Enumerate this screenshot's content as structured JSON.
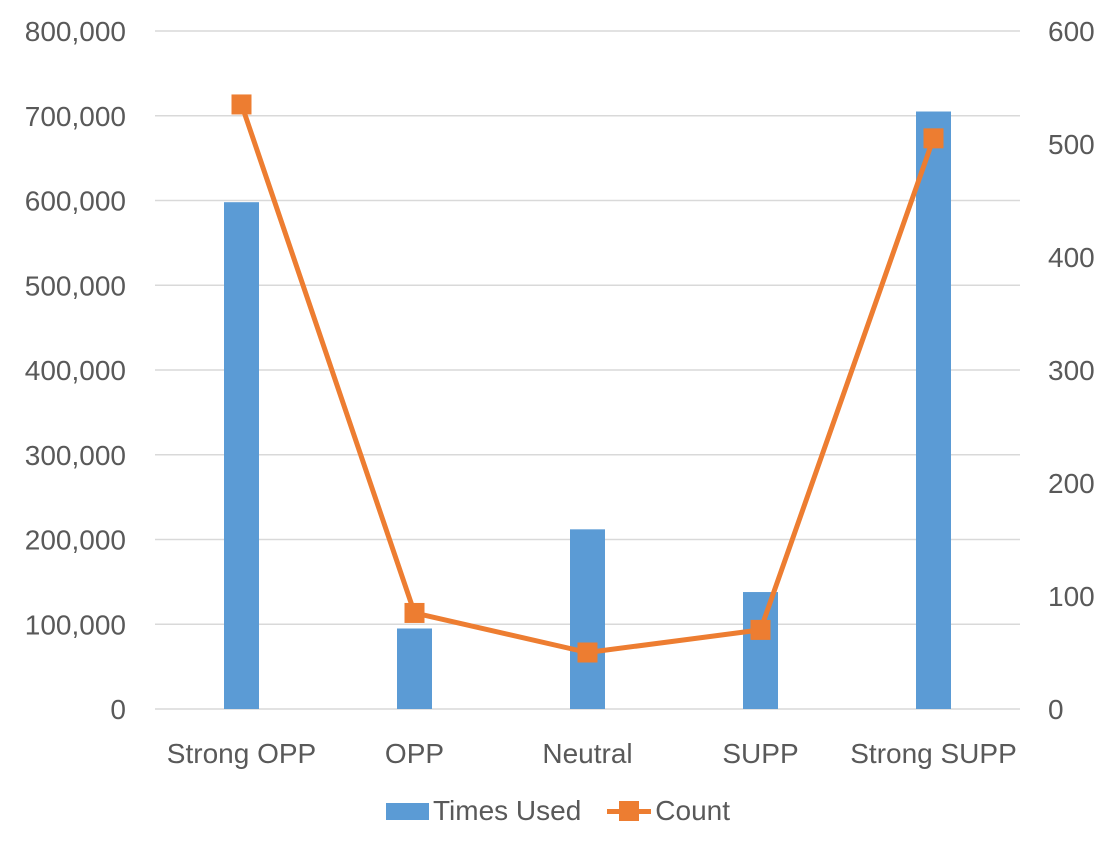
{
  "chart_data": {
    "type": "combo",
    "title": "",
    "categories": [
      "Strong OPP",
      "OPP",
      "Neutral",
      "SUPP",
      "Strong SUPP"
    ],
    "series": [
      {
        "name": "Times Used",
        "type": "bar",
        "axis": "left",
        "color": "#5B9BD5",
        "values": [
          598000,
          95000,
          212000,
          138000,
          705000
        ]
      },
      {
        "name": "Count",
        "type": "line",
        "axis": "right",
        "color": "#ED7D31",
        "marker": "square",
        "values": [
          535,
          85,
          50,
          70,
          505
        ]
      }
    ],
    "left_axis": {
      "min": 0,
      "max": 800000,
      "step": 100000,
      "tick_labels": [
        "0",
        "100,000",
        "200,000",
        "300,000",
        "400,000",
        "500,000",
        "600,000",
        "700,000",
        "800,000"
      ]
    },
    "right_axis": {
      "min": 0,
      "max": 600,
      "step": 100,
      "tick_labels": [
        "0",
        "100",
        "200",
        "300",
        "400",
        "500",
        "600"
      ]
    },
    "grid": true,
    "legend_position": "bottom",
    "colors": {
      "text": "#595959",
      "gridline": "#D9D9D9",
      "background": "#FFFFFF"
    }
  }
}
